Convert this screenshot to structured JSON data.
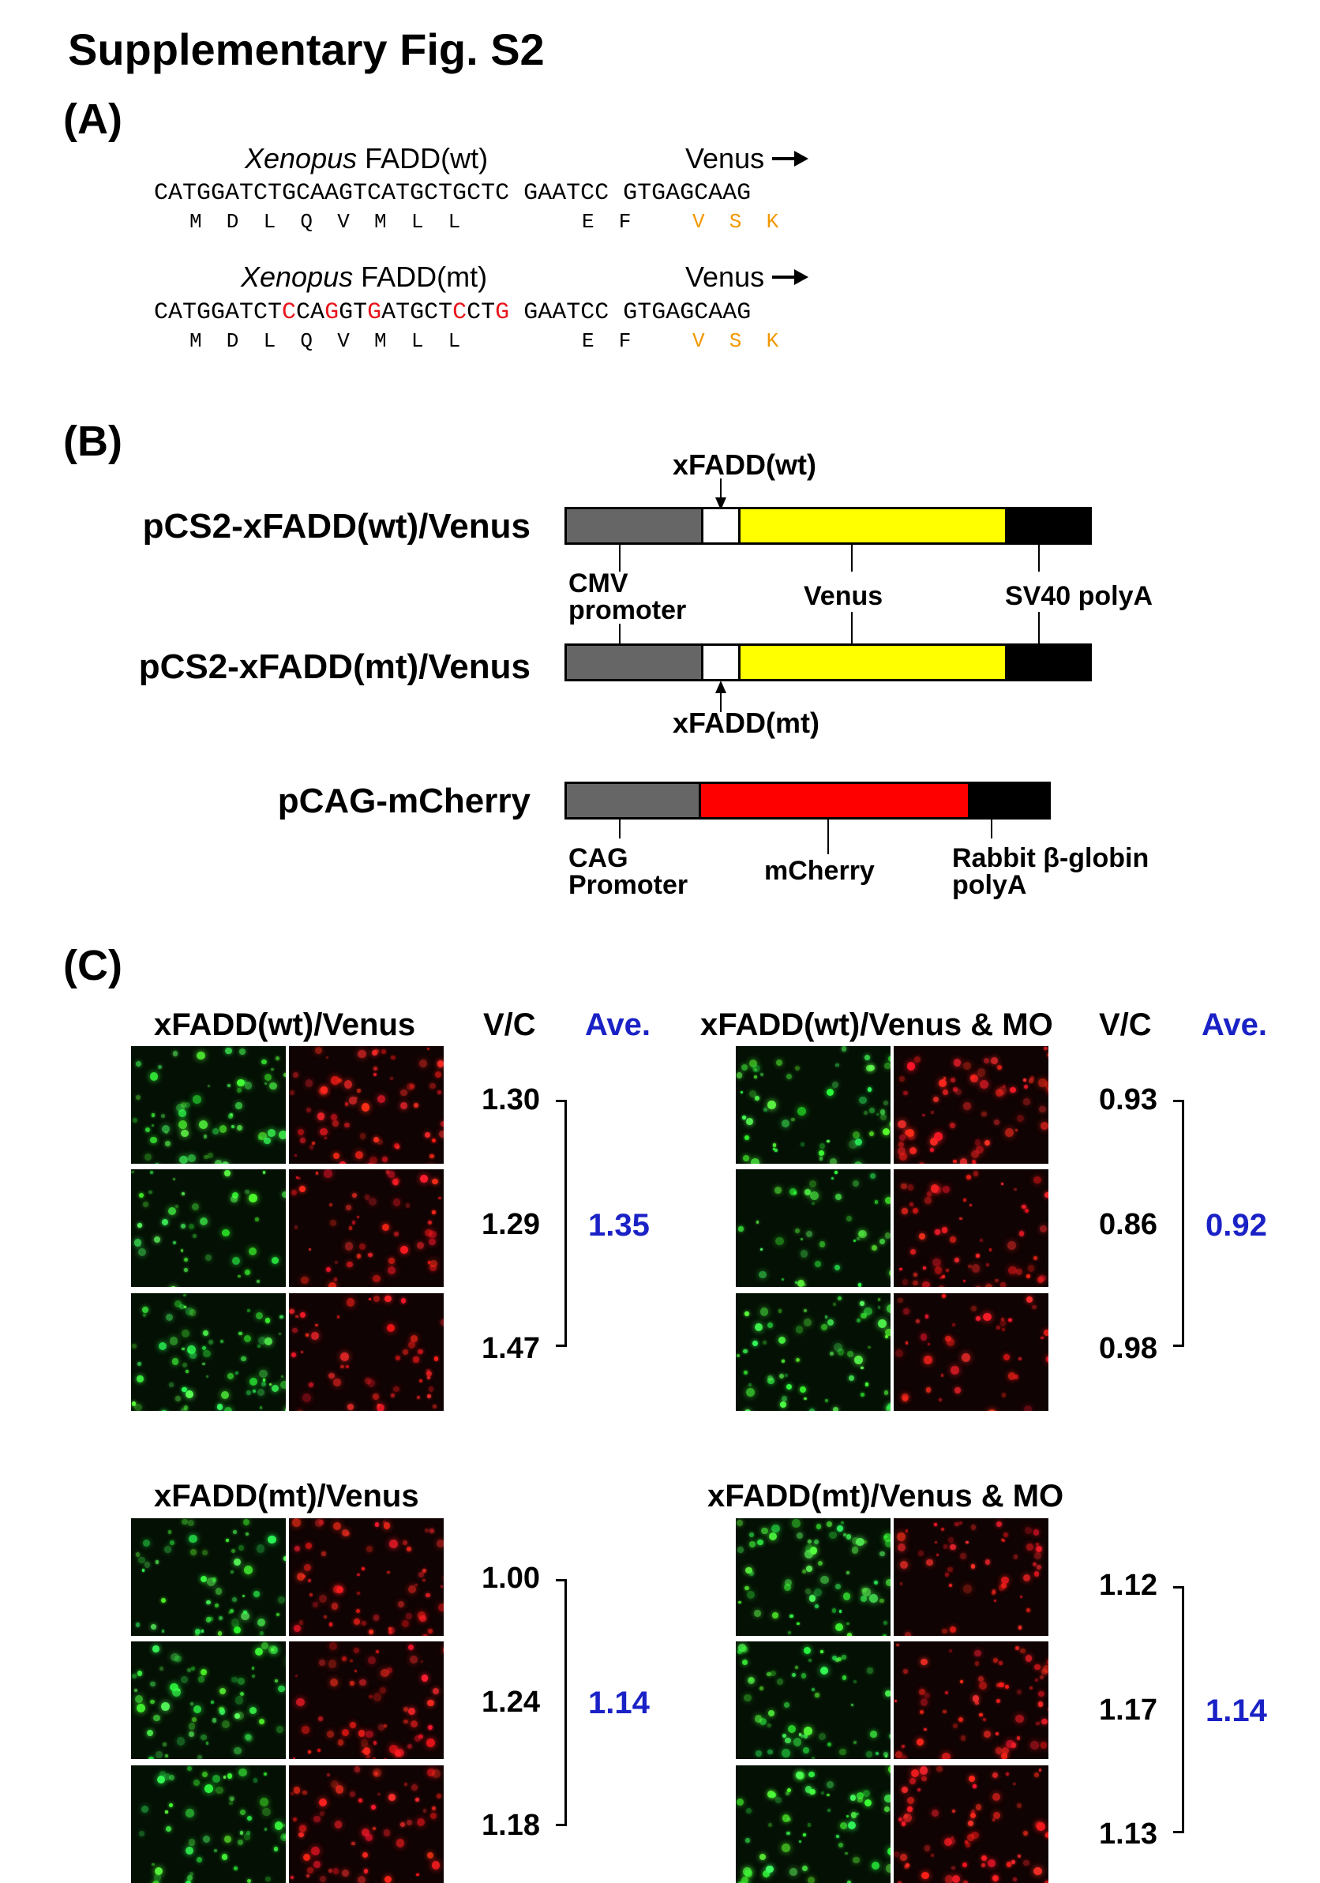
{
  "title": "Supplementary Fig. S2",
  "panels": {
    "a": "(A)",
    "b": "(B)",
    "c": "(C)"
  },
  "panelA": {
    "wt": {
      "head_italic": "Xenopus",
      "head_rest": " FADD(wt)",
      "venus": "Venus",
      "seq1": "CATGGATCTGCAAGTCATGCTGCTC",
      "seq2": "GAATCC",
      "seq3": "GTGAGCAAG",
      "aa1": "M  D  L  Q  V  M  L  L",
      "aa2": "E  F",
      "aa3": "V  S  K"
    },
    "mt": {
      "head_italic": "Xenopus",
      "head_rest": " FADD(mt)",
      "venus": "Venus",
      "seq_parts": [
        "CATGGATCT",
        "C",
        "CA",
        "G",
        "GT",
        "G",
        "ATGCT",
        "C",
        "CT",
        "G"
      ],
      "seq2": "GAATCC",
      "seq3": "GTGAGCAAG",
      "aa1": "M  D  L  Q  V  M  L  L",
      "aa2": "E  F",
      "aa3": "V  S  K"
    }
  },
  "panelB": {
    "xfadd_wt": "xFADD(wt)",
    "xfadd_mt": "xFADD(mt)",
    "construct1": "pCS2-xFADD(wt)/Venus",
    "construct2": "pCS2-xFADD(mt)/Venus",
    "construct3": "pCAG-mCherry",
    "cmv1": "CMV",
    "cmv2": "promoter",
    "venus": "Venus",
    "sv40": "SV40 polyA",
    "cag1": "CAG",
    "cag2": "Promoter",
    "mcherry": "mCherry",
    "rabbit1": "Rabbit β-globin",
    "rabbit2": "polyA",
    "colors": {
      "promoter": "#666666",
      "venus": "#ffff00",
      "mcherry": "#ff0000",
      "polyA": "#000000",
      "insert": "#ffffff"
    }
  },
  "panelC": {
    "vc": "V/C",
    "ave": "Ave.",
    "groups": [
      {
        "label": "xFADD(wt)/Venus",
        "values": [
          "1.30",
          "1.29",
          "1.47"
        ],
        "average": "1.35"
      },
      {
        "label": "xFADD(wt)/Venus & MO",
        "values": [
          "0.93",
          "0.86",
          "0.98"
        ],
        "average": "0.92"
      },
      {
        "label": "xFADD(mt)/Venus",
        "values": [
          "1.00",
          "1.24",
          "1.18"
        ],
        "average": "1.14"
      },
      {
        "label": "xFADD(mt)/Venus & MO",
        "values": [
          "1.12",
          "1.17",
          "1.13"
        ],
        "average": "1.14"
      }
    ]
  }
}
